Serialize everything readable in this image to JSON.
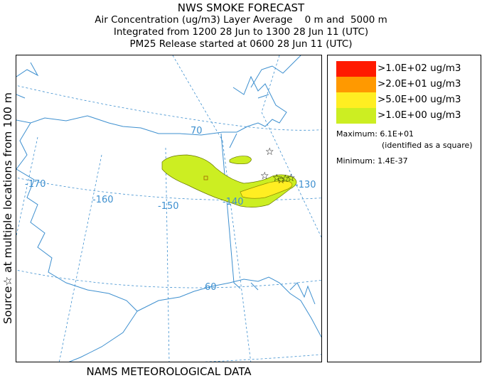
{
  "header": {
    "title": "NWS SMOKE FORECAST",
    "line2": "Air Concentration (ug/m3) Layer Average    0 m and  5000 m",
    "line3": "Integrated from 1200 28 Jun to 1300 28 Jun 11 (UTC)",
    "line4": "PM25 Release started at 0600 28 Jun 11 (UTC)"
  },
  "side_label": "Source☆ at multiple locations   from   100 m",
  "footer": "NAMS METEOROLOGICAL DATA",
  "map": {
    "longitude_labels": [
      "-170",
      "-160",
      "-150",
      "-140",
      "-130"
    ],
    "latitude_labels": [
      "70",
      "60"
    ],
    "source_marker": "☆"
  },
  "legend": {
    "items": [
      {
        "label": ">1.0E+02 ug/m3",
        "color": "#ff1a00"
      },
      {
        "label": ">2.0E+01 ug/m3",
        "color": "#ff9900"
      },
      {
        "label": ">5.0E+00 ug/m3",
        "color": "#ffee22"
      },
      {
        "label": ">1.0E+00 ug/m3",
        "color": "#ccee22"
      }
    ],
    "maximum": "Maximum: 6.1E+01",
    "max_note": "(identified as a square)",
    "minimum": "Minimum: 1.4E-37"
  },
  "colors": {
    "coastline": "#3d8fcf",
    "plume_outer": "#ccee22",
    "plume_inner": "#ffee22"
  }
}
